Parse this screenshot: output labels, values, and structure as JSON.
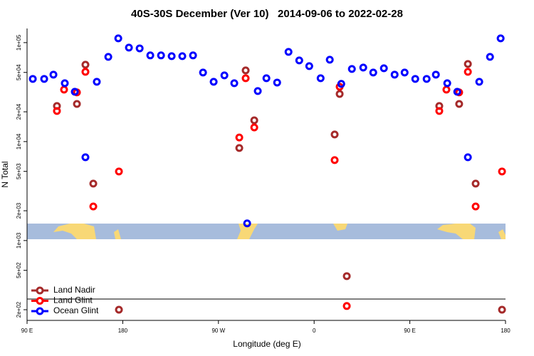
{
  "chart_data": {
    "type": "scatter",
    "title": "40S-30S December (Ver 10)   2014-09-06 to 2022-02-28",
    "x_label": "Longitude (deg E)",
    "y_label": "N Total",
    "ylog": true,
    "legend": "bottomleft",
    "xlim": [
      90,
      540
    ],
    "ylim": [
      156,
      139000
    ],
    "xticks": [
      {
        "value": 90,
        "label": "90 E"
      },
      {
        "value": 180,
        "label": "180"
      },
      {
        "value": 270,
        "label": "90 W"
      },
      {
        "value": 360,
        "label": "0"
      },
      {
        "value": 450,
        "label": "90 E"
      },
      {
        "value": 540,
        "label": "180"
      }
    ],
    "yticks": [
      {
        "value": 200,
        "label": "2e+02"
      },
      {
        "value": 500,
        "label": "5e+02"
      },
      {
        "value": 1000,
        "label": "1e+03"
      },
      {
        "value": 2000,
        "label": "2e+03"
      },
      {
        "value": 5000,
        "label": "5e+03"
      },
      {
        "value": 10000,
        "label": "1e+04"
      },
      {
        "value": 20000,
        "label": "2e+04"
      },
      {
        "value": 50000,
        "label": "5e+04"
      },
      {
        "value": 100000,
        "label": "1e+05"
      }
    ],
    "series": [
      {
        "name": "Land Nadir",
        "color": "#a52a2a",
        "x": [
          118.1,
          136.9,
          144.9,
          152.3,
          176.4,
          289.6,
          295.6,
          303.7,
          379.3,
          384,
          390.7,
          477.7,
          496.4,
          504.6,
          511.9,
          536.7
        ],
        "values": [
          22900,
          24000,
          59800,
          3760,
          200,
          8610,
          52400,
          16400,
          11800,
          30300,
          437,
          22900,
          24000,
          60800,
          3760,
          200
        ]
      },
      {
        "name": "Land Glint",
        "color": "#ff0000",
        "x": [
          118.1,
          124.8,
          136.9,
          144.9,
          152.3,
          176.4,
          289.6,
          295.6,
          303.7,
          379.3,
          384,
          390.7,
          477.7,
          484.4,
          496.4,
          504.6,
          511.9,
          536.7
        ],
        "values": [
          20400,
          33500,
          31400,
          50700,
          2210,
          4990,
          11000,
          43700,
          13900,
          6500,
          35800,
          218,
          20400,
          33500,
          31400,
          50700,
          2210,
          4990
        ]
      },
      {
        "name": "Ocean Glint",
        "color": "#0000ff",
        "x": [
          95.4,
          106.1,
          114.8,
          125.5,
          134.9,
          144.9,
          155.6,
          166.4,
          175.8,
          185.8,
          195.9,
          205.9,
          216,
          226,
          236,
          246.1,
          255.5,
          265.5,
          275.6,
          284.9,
          297,
          307,
          315.1,
          325.2,
          335.9,
          346,
          355.4,
          366.1,
          374.7,
          385.5,
          395.5,
          406.2,
          415.6,
          425.6,
          435.7,
          445.1,
          455.1,
          465.8,
          474.5,
          485.2,
          494.6,
          504.6,
          515.3,
          525.4,
          535.4
        ],
        "values": [
          43000,
          43000,
          47500,
          38900,
          31900,
          6950,
          40200,
          71800,
          110400,
          89100,
          87500,
          74300,
          74300,
          73000,
          73000,
          74300,
          49900,
          40200,
          46700,
          38900,
          1490,
          32400,
          43700,
          39500,
          80600,
          66100,
          57900,
          43700,
          67200,
          38300,
          54200,
          56000,
          49900,
          55100,
          47500,
          49900,
          43000,
          43000,
          47500,
          38900,
          31900,
          6950,
          40200,
          71800,
          110400
        ]
      }
    ]
  }
}
